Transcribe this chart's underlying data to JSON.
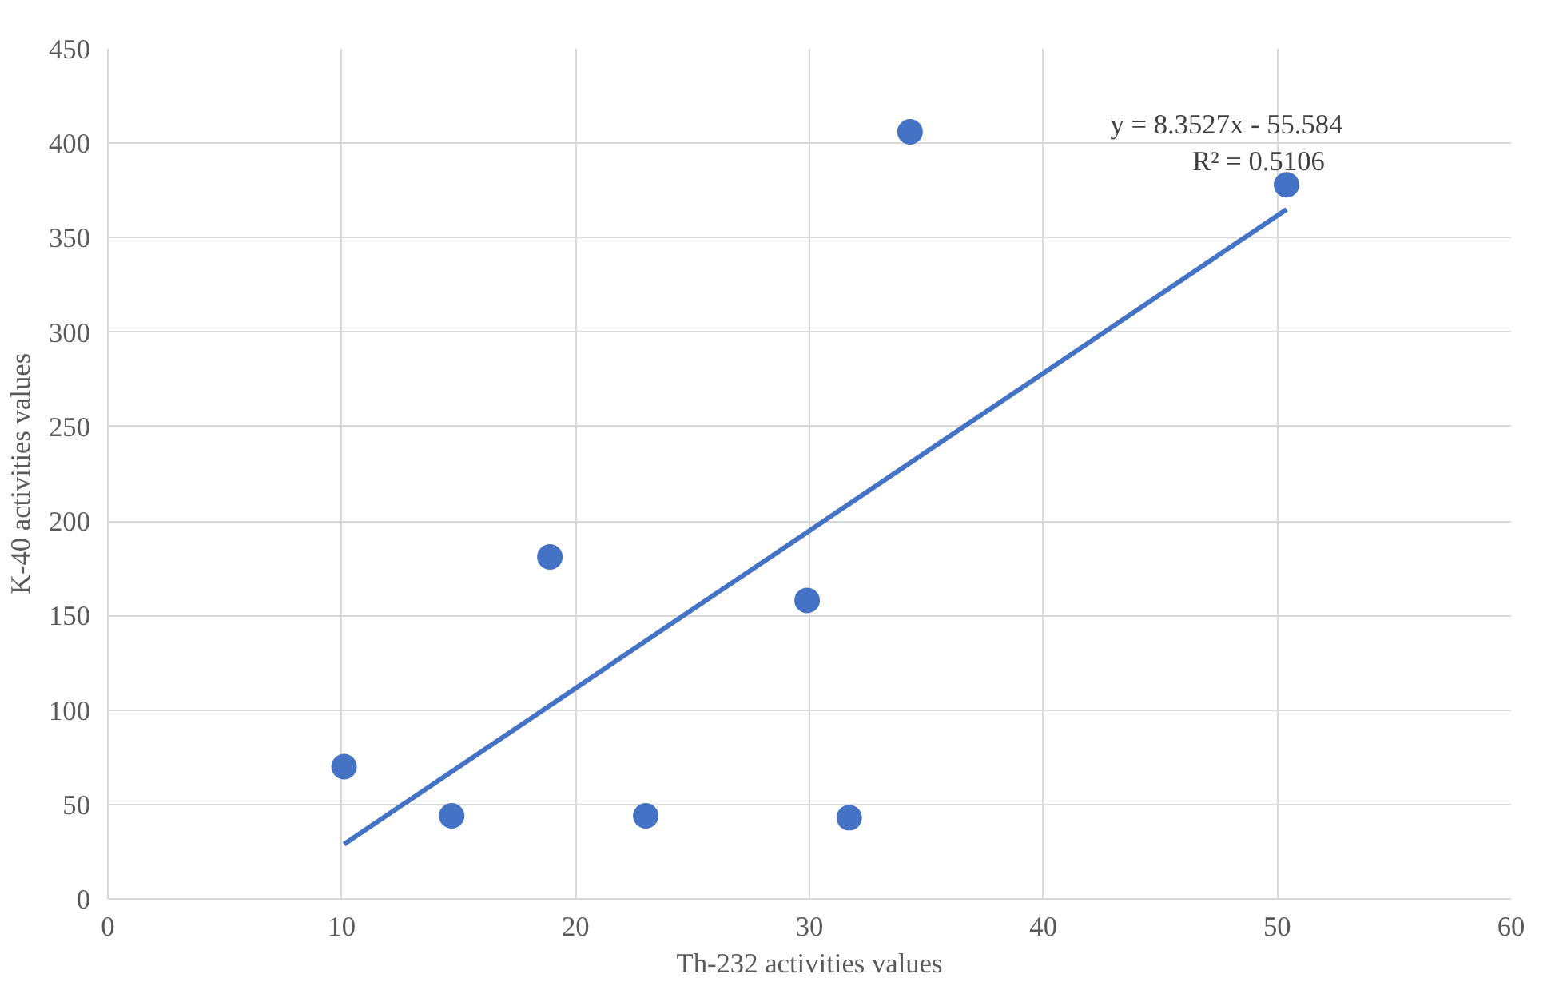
{
  "chart_data": {
    "type": "scatter",
    "xlabel": "Th-232 activities values",
    "ylabel": "K-40 activities values",
    "xlim": [
      0,
      60
    ],
    "xticks": [
      0,
      10,
      20,
      30,
      40,
      50,
      60
    ],
    "ylim": [
      0,
      450
    ],
    "yticks": [
      0,
      50,
      100,
      150,
      200,
      250,
      300,
      350,
      400,
      450
    ],
    "grid": true,
    "series": [
      {
        "color": "#4472c4",
        "marker": "circle",
        "x": [
          10.1,
          14.7,
          18.9,
          23.0,
          29.9,
          31.7,
          34.3,
          50.4
        ],
        "values": [
          70,
          44,
          181,
          44,
          158,
          43,
          406,
          378
        ]
      },
      {
        "type": "line",
        "color": "#4472c4",
        "x": [
          10.1,
          50.4
        ],
        "values": [
          29,
          365
        ]
      }
    ],
    "annotations": [
      "y = 8.3527x - 55.584",
      "R² = 0.5106"
    ]
  }
}
